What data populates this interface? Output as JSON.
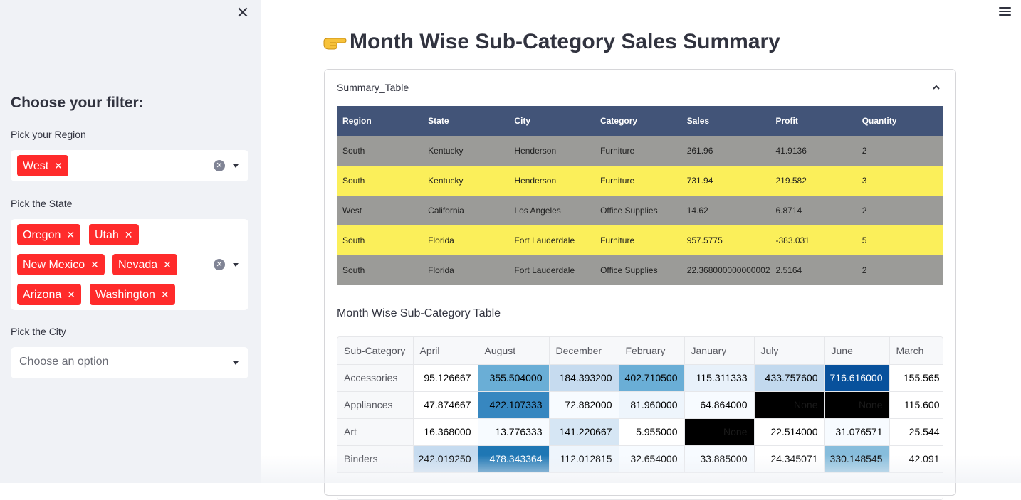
{
  "sidebar": {
    "filter_title": "Choose your filter:",
    "region": {
      "label": "Pick your Region",
      "selected": [
        "West"
      ]
    },
    "state": {
      "label": "Pick the State",
      "selected": [
        "Oregon",
        "Utah",
        "New Mexico",
        "Nevada",
        "Arizona",
        "Washington"
      ]
    },
    "city": {
      "label": "Pick the City",
      "placeholder": "Choose an option"
    }
  },
  "main": {
    "title": "Month Wise Sub-Category Sales Summary",
    "expander_label": "Summary_Table",
    "summary_table": {
      "columns": [
        "Region",
        "State",
        "City",
        "Category",
        "Sales",
        "Profit",
        "Quantity"
      ],
      "rows": [
        [
          "South",
          "Kentucky",
          "Henderson",
          "Furniture",
          "261.96",
          "41.9136",
          "2"
        ],
        [
          "South",
          "Kentucky",
          "Henderson",
          "Furniture",
          "731.94",
          "219.582",
          "3"
        ],
        [
          "West",
          "California",
          "Los Angeles",
          "Office Supplies",
          "14.62",
          "6.8714",
          "2"
        ],
        [
          "South",
          "Florida",
          "Fort Lauderdale",
          "Furniture",
          "957.5775",
          "-383.031",
          "5"
        ],
        [
          "South",
          "Florida",
          "Fort Lauderdale",
          "Office Supplies",
          "22.368000000000002",
          "2.5164",
          "2"
        ]
      ],
      "row_colors": [
        "#9b9b98",
        "#fbef5a",
        "#9b9b98",
        "#fbef5a",
        "#9b9b98"
      ]
    },
    "subcategory_title": "Month Wise Sub-Category Table",
    "subcategory_table": {
      "columns": [
        "Sub-Category",
        "April",
        "August",
        "December",
        "February",
        "January",
        "July",
        "June",
        "March"
      ],
      "rows": [
        {
          "name": "Accessories",
          "values": [
            "95.126667",
            "355.504000",
            "184.393200",
            "402.710500",
            "115.311333",
            "433.757600",
            "716.616000",
            "155.565"
          ],
          "colors": [
            "#ffffff",
            "#6aaed6",
            "#c6dbef",
            "#6aaed6",
            "#e8f1fa",
            "#c2d9ee",
            "#08519c",
            "#ffffff"
          ]
        },
        {
          "name": "Appliances",
          "values": [
            "47.874667",
            "422.107333",
            "72.882000",
            "81.960000",
            "64.864000",
            "None",
            "None",
            "115.600"
          ],
          "colors": [
            "#ffffff",
            "#3787c0",
            "#f7fbff",
            "#eef5fc",
            "#f7fbff",
            "#000000",
            "#000000",
            "#ffffff"
          ]
        },
        {
          "name": "Art",
          "values": [
            "16.368000",
            "13.776333",
            "141.220667",
            "5.955000",
            "None",
            "22.514000",
            "31.076571",
            "25.544"
          ],
          "colors": [
            "#ffffff",
            "#f7fbff",
            "#d6e6f4",
            "#ffffff",
            "#000000",
            "#ffffff",
            "#f7fbff",
            "#ffffff"
          ]
        },
        {
          "name": "Binders",
          "values": [
            "242.019250",
            "478.343364",
            "112.012815",
            "32.654000",
            "33.885000",
            "24.345071",
            "330.148545",
            "42.091"
          ],
          "colors": [
            "#c6dbef",
            "#1f77b4",
            "#eef5fc",
            "#f7fbff",
            "#f7fbff",
            "#ffffff",
            "#87bddc",
            "#ffffff"
          ]
        }
      ]
    }
  }
}
